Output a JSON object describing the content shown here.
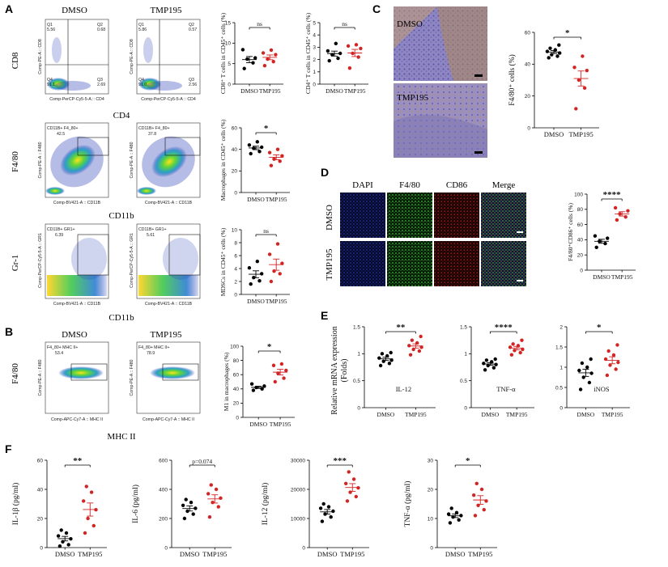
{
  "panel_letters": {
    "a": "A",
    "b": "B",
    "c": "C",
    "d": "D",
    "e": "E",
    "f": "F"
  },
  "colors": {
    "dmso": "#000000",
    "tmp195": "#d32424",
    "flow_high": "#ffd21a",
    "flow_mid": "#35c24a",
    "flow_low": "#1f3fb8",
    "tissue_brown": "#b0885a",
    "tissue_purple": "#7a74b5",
    "dapi": "#2a3fbf",
    "f480": "#3fbf3a",
    "cd86": "#d42a2a"
  },
  "panelA": {
    "col_headers": [
      "DMSO",
      "TMP195"
    ],
    "rows": [
      {
        "ylabel": "CD8",
        "xlabel": "CD4",
        "plots": [
          {
            "quad": [
              "Q1\n5.56",
              "Q2\n0.68",
              "Q4\n91.1",
              "Q3\n2.69"
            ],
            "xaxis": "Comp-PerCP-Cy5-5-A :: CD4",
            "yaxis": "Comp-PE-A :: CD8"
          },
          {
            "quad": [
              "Q1\n5.86",
              "Q2\n0.57",
              "Q4\n91.0",
              "Q3\n2.56"
            ],
            "xaxis": "Comp-PerCP-Cy5-5-A :: CD4",
            "yaxis": "Comp-PE-A :: CD8"
          }
        ]
      },
      {
        "ylabel": "F4/80",
        "xlabel": "CD11b",
        "plots": [
          {
            "gate": "CD11B+ F4_80+\n42.5",
            "xaxis": "Comp-BV421-A :: CD11B",
            "yaxis": "Comp-PE-A :: F480"
          },
          {
            "gate": "CD11B+ F4_80+\n37.8",
            "xaxis": "Comp-BV421-A :: CD11B",
            "yaxis": "Comp-PE-A :: F480"
          }
        ]
      },
      {
        "ylabel": "Gr-1",
        "xlabel": "CD11b",
        "plots": [
          {
            "gate": "CD11B+ GR1+\n6.39",
            "xaxis": "Comp-BV421-A :: CD11B",
            "yaxis": "Comp-PerCP-Cy5-5-A :: GR1"
          },
          {
            "gate": "CD11B+ GR1+\n5.61",
            "xaxis": "Comp-BV421-A :: CD11B",
            "yaxis": "Comp-PerCP-Cy5-5-A :: GR1"
          }
        ]
      }
    ]
  },
  "panelB": {
    "col_headers": [
      "DMSO",
      "TMP195"
    ],
    "ylabel": "F4/80",
    "xlabel": "MHC II",
    "plots": [
      {
        "gate": "F4_80+ MHC II+\n53.4",
        "xaxis": "Comp-APC-Cy7-A :: MHC II",
        "yaxis": "Comp-PE-A :: F480"
      },
      {
        "gate": "F4_80+ MHC II+\n78.9",
        "xaxis": "Comp-APC-Cy7-A :: MHC II",
        "yaxis": "Comp-PE-A :: F480"
      }
    ]
  },
  "panelC": {
    "images": [
      "DMSO",
      "TMP195"
    ]
  },
  "panelD": {
    "col_headers": [
      "DAPI",
      "F4/80",
      "CD86",
      "Merge"
    ],
    "row_labels": [
      "DMSO",
      "TMP195"
    ]
  },
  "panelE": {
    "ylabel": "Relative mRNA expression\n(Folds)"
  },
  "chart_data": [
    {
      "id": "a_cd8",
      "type": "scatter",
      "ylabel": "CD8⁺ T cells in CD45⁺ cells (%)",
      "ylim": [
        0,
        15
      ],
      "yticks": [
        0,
        5,
        10,
        15
      ],
      "categories": [
        "DMSO",
        "TMP195"
      ],
      "sig": "ns",
      "series": [
        {
          "name": "DMSO",
          "values": [
            3.8,
            5.2,
            6.1,
            6.4,
            8.4
          ]
        },
        {
          "name": "TMP195",
          "values": [
            4.5,
            5.5,
            6.1,
            7.2,
            7.6,
            8.3
          ]
        }
      ]
    },
    {
      "id": "a_cd4",
      "type": "scatter",
      "ylabel": "CD4⁺ T cells in CD45⁺ cells (%)",
      "ylim": [
        0,
        5
      ],
      "yticks": [
        0,
        1,
        2,
        3,
        4,
        5
      ],
      "categories": [
        "DMSO",
        "TMP195"
      ],
      "sig": "ns",
      "series": [
        {
          "name": "DMSO",
          "values": [
            1.9,
            2.1,
            2.4,
            2.5,
            2.7,
            3.3
          ]
        },
        {
          "name": "TMP195",
          "values": [
            1.3,
            2.2,
            2.5,
            2.9,
            3.1,
            3.2
          ]
        }
      ]
    },
    {
      "id": "a_mac",
      "type": "scatter",
      "ylabel": "Macrophages in CD45⁺ cells (%)",
      "ylim": [
        0,
        60
      ],
      "yticks": [
        0,
        20,
        40,
        60
      ],
      "categories": [
        "DMSO",
        "TMP195"
      ],
      "sig": "*",
      "series": [
        {
          "name": "DMSO",
          "values": [
            36,
            38,
            41,
            42,
            44,
            47
          ]
        },
        {
          "name": "TMP195",
          "values": [
            25,
            29,
            31,
            34,
            37,
            40
          ]
        }
      ]
    },
    {
      "id": "a_mdsc",
      "type": "scatter",
      "ylabel": "MDSCs in CD45⁺ cells (%)",
      "ylim": [
        0,
        10
      ],
      "yticks": [
        0,
        2,
        4,
        6,
        8,
        10
      ],
      "categories": [
        "DMSO",
        "TMP195"
      ],
      "sig": "ns",
      "series": [
        {
          "name": "DMSO",
          "values": [
            1.6,
            2.1,
            2.6,
            3.2,
            4.1,
            5.1
          ]
        },
        {
          "name": "TMP195",
          "values": [
            2.0,
            3.2,
            3.6,
            4.8,
            6.2,
            7.8
          ]
        }
      ]
    },
    {
      "id": "b_m1",
      "type": "scatter",
      "ylabel": "M1 in macrophages (%)",
      "ylim": [
        0,
        100
      ],
      "yticks": [
        0,
        20,
        40,
        60,
        80,
        100
      ],
      "categories": [
        "DMSO",
        "TMP195"
      ],
      "sig": "*",
      "series": [
        {
          "name": "DMSO",
          "values": [
            38,
            40,
            42,
            44,
            47
          ]
        },
        {
          "name": "TMP195",
          "values": [
            50,
            55,
            62,
            66,
            73,
            75
          ]
        }
      ]
    },
    {
      "id": "c_f480",
      "type": "scatter",
      "ylabel": "F4/80⁺ cells (%)",
      "ylim": [
        0,
        60
      ],
      "yticks": [
        0,
        20,
        40,
        60
      ],
      "categories": [
        "DMSO",
        "TMP195"
      ],
      "sig": "*",
      "series": [
        {
          "name": "DMSO",
          "values": [
            44,
            45,
            46,
            47,
            48,
            49,
            50,
            52
          ]
        },
        {
          "name": "TMP195",
          "values": [
            12,
            25,
            30,
            36,
            38,
            45
          ]
        }
      ]
    },
    {
      "id": "d_cd86",
      "type": "scatter",
      "ylabel": "F4/80⁺CD86⁺ cells (%)",
      "ylim": [
        0,
        100
      ],
      "yticks": [
        0,
        20,
        40,
        60,
        80,
        100
      ],
      "categories": [
        "DMSO",
        "TMP195"
      ],
      "sig": "****",
      "series": [
        {
          "name": "DMSO",
          "values": [
            30,
            35,
            38,
            42,
            45
          ]
        },
        {
          "name": "TMP195",
          "values": [
            66,
            70,
            74,
            78,
            82
          ]
        }
      ]
    },
    {
      "id": "e_il12",
      "type": "scatter",
      "label": "IL-12",
      "ylim": [
        0,
        1.5
      ],
      "yticks": [
        0.0,
        0.5,
        1.0,
        1.5
      ],
      "categories": [
        "DMSO",
        "TMP195"
      ],
      "sig": "**",
      "series": [
        {
          "name": "DMSO",
          "values": [
            0.78,
            0.82,
            0.86,
            0.88,
            0.92,
            0.96,
            1.0,
            1.02
          ]
        },
        {
          "name": "TMP195",
          "values": [
            0.98,
            1.05,
            1.08,
            1.12,
            1.15,
            1.2,
            1.25,
            1.32
          ]
        }
      ]
    },
    {
      "id": "e_tnf",
      "type": "scatter",
      "label": "TNF-α",
      "ylim": [
        0,
        1.5
      ],
      "yticks": [
        0.0,
        0.5,
        1.0,
        1.5
      ],
      "categories": [
        "DMSO",
        "TMP195"
      ],
      "sig": "****",
      "series": [
        {
          "name": "DMSO",
          "values": [
            0.7,
            0.74,
            0.78,
            0.8,
            0.82,
            0.85,
            0.88,
            0.9
          ]
        },
        {
          "name": "TMP195",
          "values": [
            0.98,
            1.02,
            1.06,
            1.08,
            1.12,
            1.15,
            1.18,
            1.25
          ]
        }
      ]
    },
    {
      "id": "e_inos",
      "type": "scatter",
      "label": "iNOS",
      "ylim": [
        0,
        2.0
      ],
      "yticks": [
        0.0,
        0.5,
        1.0,
        1.5,
        2.0
      ],
      "categories": [
        "DMSO",
        "TMP195"
      ],
      "sig": "*",
      "series": [
        {
          "name": "DMSO",
          "values": [
            0.45,
            0.62,
            0.75,
            0.85,
            0.92,
            1.0,
            1.1,
            1.2
          ]
        },
        {
          "name": "TMP195",
          "values": [
            0.8,
            0.95,
            1.05,
            1.12,
            1.2,
            1.3,
            1.4,
            1.55
          ]
        }
      ]
    },
    {
      "id": "f_il1b",
      "type": "scatter",
      "ylabel": "IL-1β (pg/ml)",
      "ylim": [
        0,
        60
      ],
      "yticks": [
        0,
        20,
        40,
        60
      ],
      "categories": [
        "DMSO",
        "TMP195"
      ],
      "sig": "**",
      "series": [
        {
          "name": "DMSO",
          "values": [
            1,
            2,
            4,
            6,
            8,
            10,
            12
          ]
        },
        {
          "name": "TMP195",
          "values": [
            10,
            15,
            20,
            26,
            32,
            38,
            42
          ]
        }
      ]
    },
    {
      "id": "f_il6",
      "type": "scatter",
      "ylabel": "IL-6 (pg/ml)",
      "ylim": [
        0,
        600
      ],
      "yticks": [
        0,
        200,
        400,
        600
      ],
      "categories": [
        "DMSO",
        "TMP195"
      ],
      "sig": "p=0.074",
      "series": [
        {
          "name": "DMSO",
          "values": [
            200,
            230,
            250,
            270,
            290,
            310,
            330
          ]
        },
        {
          "name": "TMP195",
          "values": [
            210,
            280,
            310,
            340,
            370,
            400,
            430
          ]
        }
      ]
    },
    {
      "id": "f_il12",
      "type": "scatter",
      "ylabel": "IL-12 (pg/ml)",
      "ylim": [
        0,
        30000
      ],
      "yticks": [
        0,
        10000,
        20000,
        30000
      ],
      "categories": [
        "DMSO",
        "TMP195"
      ],
      "sig": "***",
      "series": [
        {
          "name": "DMSO",
          "values": [
            9000,
            10500,
            11500,
            12500,
            13500,
            14000,
            15000
          ]
        },
        {
          "name": "TMP195",
          "values": [
            16000,
            17500,
            19000,
            20500,
            22000,
            23500,
            26000
          ]
        }
      ]
    },
    {
      "id": "f_tnf",
      "type": "scatter",
      "ylabel": "TNF-α (pg/ml)",
      "ylim": [
        0,
        30
      ],
      "yticks": [
        0,
        10,
        20,
        30
      ],
      "categories": [
        "DMSO",
        "TMP195"
      ],
      "sig": "*",
      "series": [
        {
          "name": "DMSO",
          "values": [
            8.5,
            9.5,
            10.5,
            11,
            11.5,
            12,
            13.5
          ]
        },
        {
          "name": "TMP195",
          "values": [
            11,
            13,
            14.5,
            16,
            18,
            20,
            22
          ]
        }
      ]
    }
  ]
}
